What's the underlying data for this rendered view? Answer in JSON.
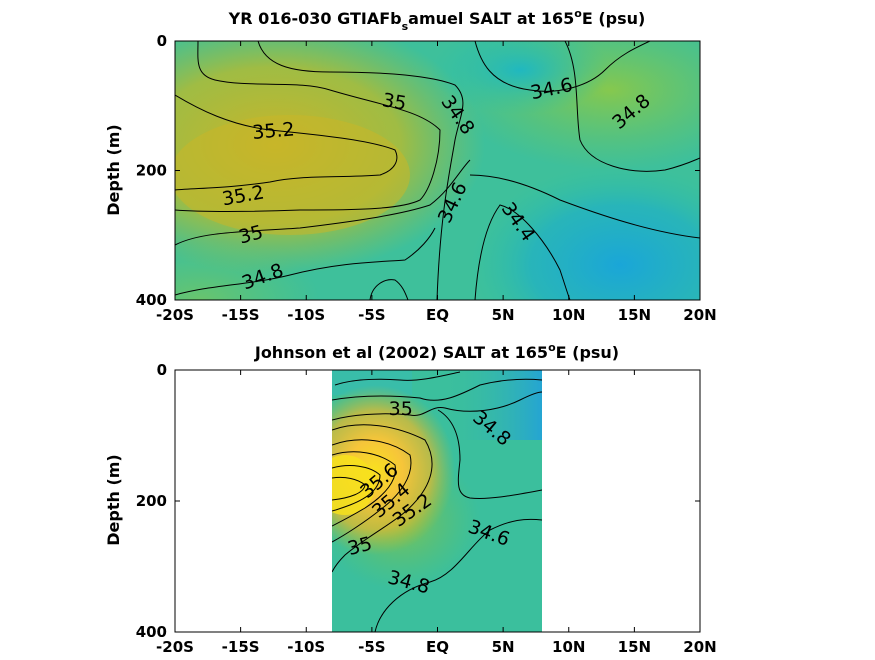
{
  "chart_data": [
    {
      "type": "contour",
      "title": "YR 016-030 GTIAFb_samuel SALT at 165°E (psu)",
      "title_parts": {
        "a": "YR 016-030 GTIAFb",
        "sub": "s",
        "b": "amuel SALT at 165",
        "sup": "o",
        "c": "E (psu)"
      },
      "ylabel": "Depth (m)",
      "x_tick_labels": [
        "-20S",
        "-15S",
        "-10S",
        "-5S",
        "EQ",
        "5N",
        "10N",
        "15N",
        "20N"
      ],
      "x_ticks": [
        -20,
        -15,
        -10,
        -5,
        0,
        5,
        10,
        15,
        20
      ],
      "xlim": [
        -20,
        20
      ],
      "y_tick_labels": [
        "0",
        "200",
        "400"
      ],
      "y_ticks": [
        0,
        200,
        400
      ],
      "ylim": [
        0,
        400
      ],
      "y_reversed": true,
      "colormap": "parula",
      "contour_labels": [
        {
          "text": "35",
          "x": -3.3,
          "y": 95,
          "angle": 10
        },
        {
          "text": "35.2",
          "x": -12.5,
          "y": 140,
          "angle": -5
        },
        {
          "text": "35.2",
          "x": -14.8,
          "y": 240,
          "angle": -10
        },
        {
          "text": "35",
          "x": -14.2,
          "y": 300,
          "angle": -15
        },
        {
          "text": "34.8",
          "x": -13.3,
          "y": 365,
          "angle": -20
        },
        {
          "text": "34.8",
          "x": 1.5,
          "y": 115,
          "angle": 55
        },
        {
          "text": "34.6",
          "x": 8.7,
          "y": 75,
          "angle": -12
        },
        {
          "text": "34.8",
          "x": 14.8,
          "y": 110,
          "angle": -40
        },
        {
          "text": "34.6",
          "x": 1.2,
          "y": 250,
          "angle": -65
        },
        {
          "text": "34.4",
          "x": 6.1,
          "y": 280,
          "angle": 55
        }
      ]
    },
    {
      "type": "contour",
      "title": "Johnson et al (2002) SALT at 165°E (psu)",
      "title_parts": {
        "a": "Johnson et al (2002) SALT at 165",
        "sup": "o",
        "c": "E (psu)"
      },
      "ylabel": "Depth (m)",
      "x_tick_labels": [
        "-20S",
        "-15S",
        "-10S",
        "-5S",
        "EQ",
        "5N",
        "10N",
        "15N",
        "20N"
      ],
      "x_ticks": [
        -20,
        -15,
        -10,
        -5,
        0,
        5,
        10,
        15,
        20
      ],
      "xlim": [
        -20,
        20
      ],
      "y_tick_labels": [
        "0",
        "200",
        "400"
      ],
      "y_ticks": [
        0,
        200,
        400
      ],
      "ylim": [
        0,
        400
      ],
      "y_reversed": true,
      "data_xlim": [
        -8,
        8
      ],
      "colormap": "parula",
      "contour_labels": [
        {
          "text": "35",
          "x": -2.8,
          "y": 60,
          "angle": 0
        },
        {
          "text": "34.8",
          "x": 4.1,
          "y": 90,
          "angle": 40
        },
        {
          "text": "35.6",
          "x": -4.4,
          "y": 170,
          "angle": -40
        },
        {
          "text": "35.4",
          "x": -3.5,
          "y": 200,
          "angle": -40
        },
        {
          "text": "35",
          "x": -5.9,
          "y": 270,
          "angle": -15
        },
        {
          "text": "35.2",
          "x": -1.9,
          "y": 215,
          "angle": -35
        },
        {
          "text": "34.6",
          "x": 3.9,
          "y": 250,
          "angle": 20
        },
        {
          "text": "34.8",
          "x": -2.2,
          "y": 325,
          "angle": 15
        }
      ]
    }
  ]
}
